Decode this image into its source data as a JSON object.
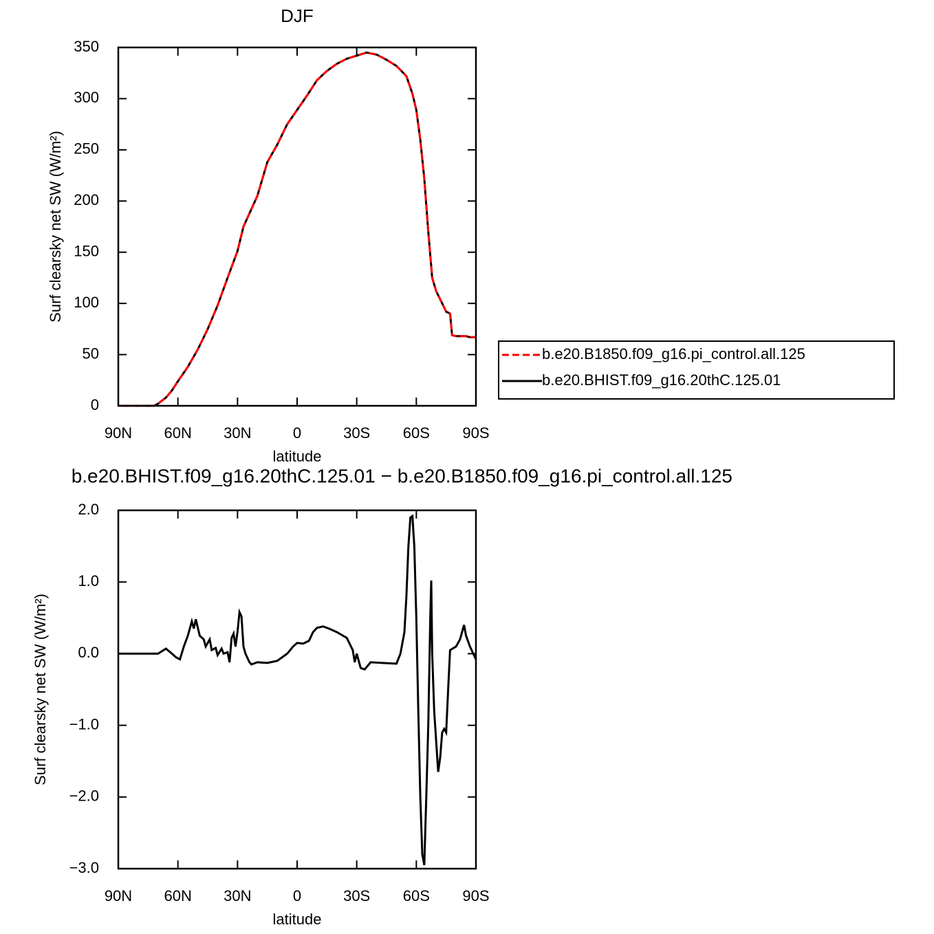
{
  "chart_data": [
    {
      "type": "line",
      "title": "DJF",
      "xlabel": "latitude",
      "ylabel": "Surf clearsky net SW (W/m²)",
      "xlim": [
        90,
        -90
      ],
      "ylim": [
        0,
        350
      ],
      "xticks": [
        {
          "value": 90,
          "label": "90N"
        },
        {
          "value": 60,
          "label": "60N"
        },
        {
          "value": 30,
          "label": "30N"
        },
        0,
        {
          "value": -30,
          "label": "30S"
        },
        {
          "value": -60,
          "label": "60S"
        },
        {
          "value": -90,
          "label": "90S"
        }
      ],
      "yticks": [
        0,
        50,
        100,
        150,
        200,
        250,
        300,
        350
      ],
      "x": [
        90,
        80,
        72,
        70,
        66,
        63,
        60,
        55,
        50,
        45,
        40,
        35,
        30,
        27,
        20,
        15,
        10,
        5,
        0,
        -5,
        -10,
        -15,
        -20,
        -25,
        -30,
        -35,
        -40,
        -45,
        -50,
        -55,
        -58,
        -60,
        -62,
        -64,
        -66,
        -68,
        -70,
        -73,
        -75,
        -77,
        -78,
        -80,
        -85,
        -87,
        -90
      ],
      "series": [
        {
          "name": "b.e20.BHIST.f09_g16.20thC.125.01",
          "color": "#000000",
          "dash": false,
          "values": [
            0,
            0,
            0,
            2,
            8,
            15,
            24,
            38,
            55,
            75,
            98,
            125,
            151,
            175,
            205,
            238,
            255,
            275,
            289,
            303,
            318,
            327,
            334,
            339,
            342,
            345,
            343,
            338,
            332,
            322,
            305,
            289,
            260,
            222,
            170,
            125,
            112,
            100,
            92,
            90,
            69,
            68,
            68,
            67,
            67
          ]
        },
        {
          "name": "b.e20.B1850.f09_g16.pi_control.all.125",
          "color": "#ff0000",
          "dash": true,
          "values": [
            0,
            0,
            0,
            2,
            8,
            15,
            24,
            38,
            55,
            75,
            98,
            125,
            151,
            175,
            205,
            238,
            255,
            275,
            289,
            303,
            318,
            327,
            334,
            339,
            342,
            345,
            343,
            338,
            332,
            322,
            305,
            289,
            260,
            222,
            170,
            125,
            112,
            100,
            92,
            90,
            69,
            68,
            68,
            67,
            67
          ]
        }
      ]
    },
    {
      "type": "line",
      "title": "b.e20.BHIST.f09_g16.20thC.125.01 − b.e20.B1850.f09_g16.pi_control.all.125",
      "xlabel": "latitude",
      "ylabel": "Surf clearsky net SW (W/m²)",
      "xlim": [
        90,
        -90
      ],
      "ylim": [
        -3,
        2
      ],
      "xticks": [
        {
          "value": 90,
          "label": "90N"
        },
        {
          "value": 60,
          "label": "60N"
        },
        {
          "value": 30,
          "label": "30N"
        },
        0,
        {
          "value": -30,
          "label": "30S"
        },
        {
          "value": -60,
          "label": "60S"
        },
        {
          "value": -90,
          "label": "90S"
        }
      ],
      "yticks": [
        {
          "value": -3,
          "label": "−3.0"
        },
        {
          "value": -2,
          "label": "−2.0"
        },
        {
          "value": -1,
          "label": "−1.0"
        },
        {
          "value": 0,
          "label": "0.0"
        },
        {
          "value": 1,
          "label": "1.0"
        },
        {
          "value": 2,
          "label": "2.0"
        }
      ],
      "color": "#000000",
      "x": [
        90,
        70,
        66,
        63,
        61,
        59,
        57,
        55,
        53,
        52,
        51,
        49,
        47,
        46,
        44,
        43,
        41,
        40,
        38,
        37,
        35,
        34,
        33,
        32,
        31,
        30,
        29,
        28,
        27,
        26,
        24,
        23,
        20,
        15,
        10,
        5,
        2,
        0,
        -3,
        -6,
        -8,
        -10,
        -13,
        -16,
        -20,
        -25,
        -28,
        -29,
        -30,
        -32,
        -34,
        -37,
        -43,
        -50,
        -52,
        -54,
        -55,
        -56,
        -57,
        -58,
        -59,
        -60,
        -61,
        -62,
        -63,
        -64,
        -65,
        -66,
        -67,
        -67.5,
        -68,
        -69,
        -71,
        -72,
        -73,
        -74,
        -75,
        -76,
        -77,
        -80,
        -82,
        -84,
        -85,
        -87,
        -90
      ],
      "values": [
        0,
        0,
        0.07,
        0,
        -0.05,
        -0.08,
        0.1,
        0.25,
        0.45,
        0.35,
        0.48,
        0.25,
        0.2,
        0.1,
        0.2,
        0.05,
        0.08,
        -0.02,
        0.07,
        0,
        0.02,
        -0.12,
        0.22,
        0.28,
        0.1,
        0.3,
        0.58,
        0.52,
        0.1,
        0,
        -0.12,
        -0.15,
        -0.12,
        -0.13,
        -0.1,
        0,
        0.1,
        0.15,
        0.14,
        0.18,
        0.3,
        0.36,
        0.38,
        0.35,
        0.3,
        0.22,
        0.05,
        -0.12,
        0,
        -0.2,
        -0.22,
        -0.12,
        -0.13,
        -0.14,
        0,
        0.3,
        0.8,
        1.5,
        1.9,
        1.92,
        1.5,
        0.5,
        -0.8,
        -2.0,
        -2.8,
        -2.95,
        -2.0,
        -1.0,
        0.5,
        1.02,
        0,
        -0.8,
        -1.65,
        -1.45,
        -1.1,
        -1.05,
        -1.1,
        -0.5,
        0.05,
        0.1,
        0.2,
        0.4,
        0.25,
        0.1,
        -0.08
      ]
    }
  ]
}
